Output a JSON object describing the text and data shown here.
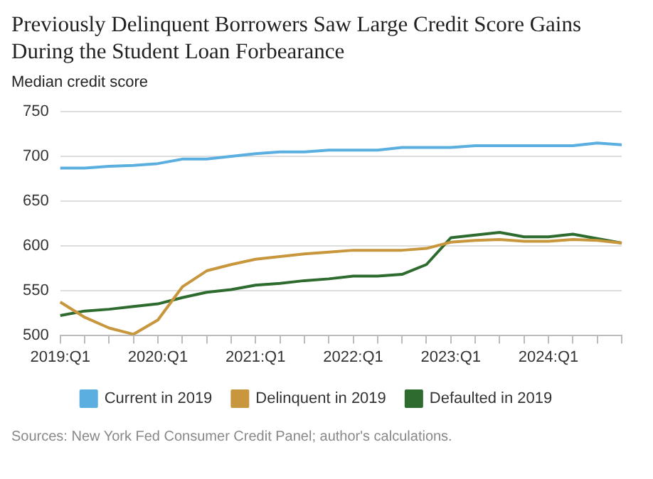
{
  "chart_data": {
    "type": "line",
    "title": "Previously Delinquent Borrowers Saw Large Credit Score Gains During the Student Loan Forbearance",
    "ylabel": "Median credit score",
    "categories": [
      "2019:Q1",
      null,
      null,
      null,
      "2020:Q1",
      null,
      null,
      null,
      "2021:Q1",
      null,
      null,
      null,
      "2022:Q1",
      null,
      null,
      null,
      "2023:Q1",
      null,
      null,
      null,
      "2024:Q1",
      null,
      null,
      null
    ],
    "series": [
      {
        "name": "Current in 2019",
        "color": "#5aafe0",
        "values": [
          687,
          687,
          689,
          690,
          692,
          697,
          697,
          700,
          703,
          705,
          705,
          707,
          707,
          707,
          710,
          710,
          710,
          712,
          712,
          712,
          712,
          712,
          715,
          713
        ]
      },
      {
        "name": "Delinquent in 2019",
        "color": "#c8963c",
        "values": [
          537,
          520,
          508,
          501,
          517,
          554,
          572,
          579,
          585,
          588,
          591,
          593,
          595,
          595,
          595,
          597,
          604,
          606,
          607,
          605,
          605,
          607,
          606,
          603
        ]
      },
      {
        "name": "Defaulted in 2019",
        "color": "#2e6b2e",
        "values": [
          522,
          527,
          529,
          532,
          535,
          542,
          548,
          551,
          556,
          558,
          561,
          563,
          566,
          566,
          568,
          579,
          609,
          612,
          615,
          610,
          610,
          613,
          608,
          603
        ]
      }
    ],
    "ylim": [
      500,
      750
    ],
    "yticks": [
      500,
      550,
      600,
      650,
      700,
      750
    ],
    "grid": "y",
    "legend": "bottom",
    "marker": "none",
    "line_style": "solid",
    "annotations": [
      "Sources: New York Fed Consumer Credit Panel; author's calculations."
    ]
  }
}
